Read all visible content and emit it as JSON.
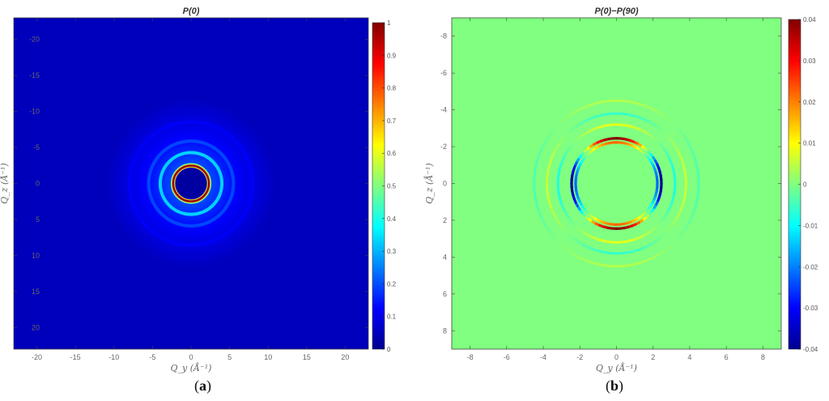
{
  "colormap": [
    "#00008f",
    "#0000ff",
    "#0080ff",
    "#00ffff",
    "#80ff80",
    "#ffff00",
    "#ff8000",
    "#ff0000",
    "#800000"
  ],
  "chart_data": [
    {
      "type": "heatmap",
      "panel_caption_open": "(",
      "panel_caption_letter": "a",
      "panel_caption_close": ")",
      "title": "P(0)",
      "xlabel": "Q_y (Å⁻¹)",
      "ylabel": "Q_z (Å⁻¹)",
      "xlim": [
        -23,
        23
      ],
      "ylim": [
        -23,
        23
      ],
      "y_inverted": true,
      "xticks": [
        "-20",
        "-15",
        "-10",
        "-5",
        "0",
        "5",
        "10",
        "15",
        "20"
      ],
      "yticks": [
        "-20",
        "-15",
        "-10",
        "-5",
        "0",
        "5",
        "10",
        "15",
        "20"
      ],
      "colorbar": {
        "min": 0,
        "max": 1,
        "ticks": [
          "0",
          "0.1",
          "0.2",
          "0.3",
          "0.4",
          "0.5",
          "0.6",
          "0.7",
          "0.8",
          "0.9",
          "1"
        ]
      },
      "description": "Isotropic scattering: bright ring peaking near |Q| ≈ 2.3 Å⁻¹ (value ≈ 1), weaker concentric rings decaying outward, background ≈ 0.05",
      "rings": [
        {
          "radius": 2.3,
          "value": 1.0
        },
        {
          "radius": 4.0,
          "value": 0.35
        },
        {
          "radius": 5.5,
          "value": 0.2
        },
        {
          "radius": 8.0,
          "value": 0.12
        }
      ]
    },
    {
      "type": "heatmap",
      "panel_caption_open": "(",
      "panel_caption_letter": "b",
      "panel_caption_close": ")",
      "title": "P(0)−P(90)",
      "xlabel": "Q_y (Å⁻¹)",
      "ylabel": "Q_z (Å⁻¹)",
      "xlim": [
        -9,
        9
      ],
      "ylim": [
        -9,
        9
      ],
      "y_inverted": true,
      "xticks": [
        "-8",
        "-6",
        "-4",
        "-2",
        "0",
        "2",
        "4",
        "6",
        "8"
      ],
      "yticks": [
        "-8",
        "-6",
        "-4",
        "-2",
        "0",
        "2",
        "4",
        "6",
        "8"
      ],
      "colorbar": {
        "min": -0.04,
        "max": 0.04,
        "ticks": [
          "-0.04",
          "-0.03",
          "-0.02",
          "-0.01",
          "0",
          "0.01",
          "0.02",
          "0.03",
          "0.04"
        ]
      },
      "description": "Anisotropic difference: ring at |Q| ≈ 2.3 Å⁻¹ positive (≈ +0.04) along Q_z, negative (≈ −0.04) along Q_y; faint alternating outer rings up to ~4.5 Å⁻¹; background ≈ 0",
      "rings": [
        {
          "radius": 2.3,
          "amplitude": 0.04
        },
        {
          "radius": 3.2,
          "amplitude": 0.008
        },
        {
          "radius": 3.8,
          "amplitude": 0.006
        },
        {
          "radius": 4.5,
          "amplitude": 0.004
        }
      ]
    }
  ]
}
